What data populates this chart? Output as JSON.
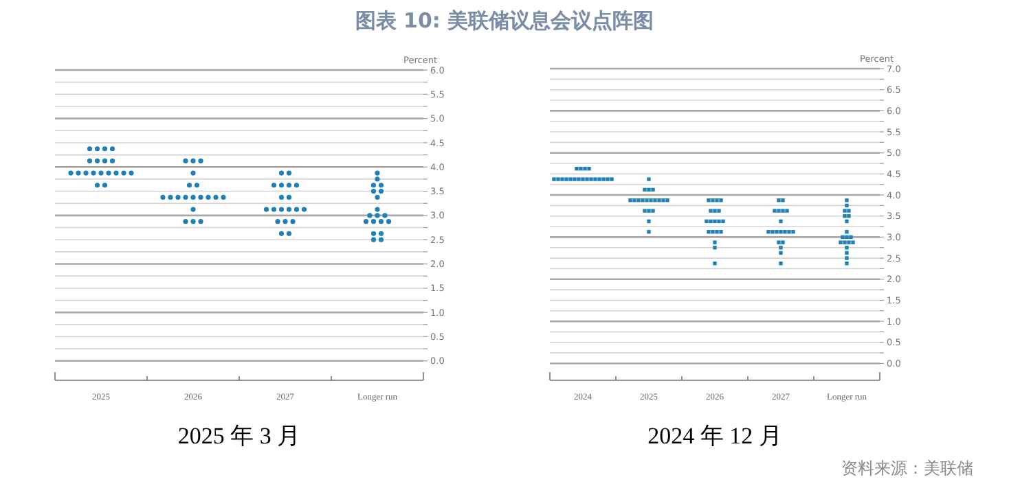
{
  "chart_data": [
    {
      "type": "scatter",
      "title": "2025 年 3 月",
      "ylabel": "Percent",
      "annotations": [
        "图表 10: 美联储议息会议点阵图"
      ],
      "categories": [
        "2025",
        "2026",
        "2027",
        "Longer run"
      ],
      "ylim": [
        -0.4,
        6.0
      ],
      "yticks": [
        {
          "value": 0,
          "label": "0.0"
        },
        {
          "value": 0.25,
          "label": null
        },
        {
          "value": 0.5,
          "label": "0.5"
        },
        {
          "value": 0.75,
          "label": null
        },
        {
          "value": 1,
          "label": "1.0"
        },
        {
          "value": 1.25,
          "label": null
        },
        {
          "value": 1.5,
          "label": "1.5"
        },
        {
          "value": 1.75,
          "label": null
        },
        {
          "value": 2,
          "label": "2.0"
        },
        {
          "value": 2.25,
          "label": null
        },
        {
          "value": 2.5,
          "label": "2.5"
        },
        {
          "value": 2.75,
          "label": null
        },
        {
          "value": 3,
          "label": "3.0"
        },
        {
          "value": 3.25,
          "label": null
        },
        {
          "value": 3.5,
          "label": "3.5"
        },
        {
          "value": 3.75,
          "label": null
        },
        {
          "value": 4,
          "label": "4.0"
        },
        {
          "value": 4.25,
          "label": null
        },
        {
          "value": 4.5,
          "label": "4.5"
        },
        {
          "value": 4.75,
          "label": null
        },
        {
          "value": 5,
          "label": "5.0"
        },
        {
          "value": 5.25,
          "label": null
        },
        {
          "value": 5.5,
          "label": "5.5"
        },
        {
          "value": 5.75,
          "label": null
        },
        {
          "value": 6,
          "label": "6.0"
        }
      ],
      "grid": "y",
      "marker": "circle",
      "series": [
        {
          "color": "#1f7fb8",
          "values": [
            4.375,
            4.125,
            3.875,
            3.875
          ]
        },
        {
          "color": "#1f7fb8",
          "values": [
            4.375,
            4.125,
            3.875,
            3.75
          ]
        },
        {
          "color": "#1f7fb8",
          "values": [
            4.375,
            4.125,
            3.625,
            3.625
          ]
        },
        {
          "color": "#1f7fb8",
          "values": [
            4.375,
            3.875,
            3.625,
            3.625
          ]
        },
        {
          "color": "#1f7fb8",
          "values": [
            4.125,
            3.625,
            3.625,
            3.5
          ]
        },
        {
          "color": "#1f7fb8",
          "values": [
            4.125,
            3.625,
            3.625,
            3.5
          ]
        },
        {
          "color": "#1f7fb8",
          "values": [
            4.125,
            3.375,
            3.375,
            3.375
          ]
        },
        {
          "color": "#1f7fb8",
          "values": [
            4.125,
            3.375,
            3.375,
            3.125
          ]
        },
        {
          "color": "#1f7fb8",
          "values": [
            3.875,
            3.375,
            3.125,
            3.0
          ]
        },
        {
          "color": "#1f7fb8",
          "values": [
            3.875,
            3.375,
            3.125,
            3.0
          ]
        },
        {
          "color": "#1f7fb8",
          "values": [
            3.875,
            3.375,
            3.125,
            3.0
          ]
        },
        {
          "color": "#1f7fb8",
          "values": [
            3.875,
            3.375,
            3.125,
            2.875
          ]
        },
        {
          "color": "#1f7fb8",
          "values": [
            3.875,
            3.375,
            3.125,
            2.875
          ]
        },
        {
          "color": "#1f7fb8",
          "values": [
            3.875,
            3.375,
            3.125,
            2.875
          ]
        },
        {
          "color": "#1f7fb8",
          "values": [
            3.875,
            3.375,
            2.875,
            2.875
          ]
        },
        {
          "color": "#1f7fb8",
          "values": [
            3.875,
            3.125,
            2.875,
            2.625
          ]
        },
        {
          "color": "#1f7fb8",
          "values": [
            3.875,
            2.875,
            2.875,
            2.625
          ]
        },
        {
          "color": "#1f7fb8",
          "values": [
            3.625,
            2.875,
            2.625,
            2.5
          ]
        },
        {
          "color": "#1f7fb8",
          "values": [
            3.625,
            2.875,
            2.625,
            2.5
          ]
        }
      ]
    },
    {
      "type": "scatter",
      "title": "2024 年 12 月",
      "ylabel": "Percent",
      "annotations": [
        "资料来源：美联储"
      ],
      "categories": [
        "2024",
        "2025",
        "2026",
        "2027",
        "Longer run"
      ],
      "ylim": [
        -0.4,
        7.0
      ],
      "yticks": [
        {
          "value": 0,
          "label": "0.0"
        },
        {
          "value": 0.25,
          "label": null
        },
        {
          "value": 0.5,
          "label": "0.5"
        },
        {
          "value": 0.75,
          "label": null
        },
        {
          "value": 1,
          "label": "1.0"
        },
        {
          "value": 1.25,
          "label": null
        },
        {
          "value": 1.5,
          "label": "1.5"
        },
        {
          "value": 1.75,
          "label": null
        },
        {
          "value": 2,
          "label": "2.0"
        },
        {
          "value": 2.25,
          "label": null
        },
        {
          "value": 2.5,
          "label": "2.5"
        },
        {
          "value": 2.75,
          "label": null
        },
        {
          "value": 3,
          "label": "3.0"
        },
        {
          "value": 3.25,
          "label": null
        },
        {
          "value": 3.5,
          "label": "3.5"
        },
        {
          "value": 3.75,
          "label": null
        },
        {
          "value": 4,
          "label": "4.0"
        },
        {
          "value": 4.25,
          "label": null
        },
        {
          "value": 4.5,
          "label": "4.5"
        },
        {
          "value": 4.75,
          "label": null
        },
        {
          "value": 5,
          "label": "5.0"
        },
        {
          "value": 5.25,
          "label": null
        },
        {
          "value": 5.5,
          "label": "5.5"
        },
        {
          "value": 5.75,
          "label": null
        },
        {
          "value": 6,
          "label": "6.0"
        },
        {
          "value": 6.25,
          "label": null
        },
        {
          "value": 6.5,
          "label": "6.5"
        },
        {
          "value": 6.75,
          "label": null
        },
        {
          "value": 7,
          "label": "7.0"
        }
      ],
      "grid": "y",
      "marker": "square",
      "series": [
        {
          "color": "#1f7fb8",
          "values": [
            4.625,
            4.375,
            3.875,
            3.875,
            3.875
          ]
        },
        {
          "color": "#1f7fb8",
          "values": [
            4.625,
            4.125,
            3.875,
            3.875,
            3.75
          ]
        },
        {
          "color": "#1f7fb8",
          "values": [
            4.625,
            4.125,
            3.875,
            3.625,
            3.625
          ]
        },
        {
          "color": "#1f7fb8",
          "values": [
            4.625,
            4.125,
            3.875,
            3.625,
            3.625
          ]
        },
        {
          "color": "#1f7fb8",
          "values": [
            4.375,
            3.875,
            3.625,
            3.625,
            3.5
          ]
        },
        {
          "color": "#1f7fb8",
          "values": [
            4.375,
            3.875,
            3.625,
            3.625,
            3.5
          ]
        },
        {
          "color": "#1f7fb8",
          "values": [
            4.375,
            3.875,
            3.625,
            3.375,
            3.375
          ]
        },
        {
          "color": "#1f7fb8",
          "values": [
            4.375,
            3.875,
            3.375,
            3.125,
            3.125
          ]
        },
        {
          "color": "#1f7fb8",
          "values": [
            4.375,
            3.875,
            3.375,
            3.125,
            3.0
          ]
        },
        {
          "color": "#1f7fb8",
          "values": [
            4.375,
            3.875,
            3.375,
            3.125,
            3.0
          ]
        },
        {
          "color": "#1f7fb8",
          "values": [
            4.375,
            3.875,
            3.375,
            3.125,
            3.0
          ]
        },
        {
          "color": "#1f7fb8",
          "values": [
            4.375,
            3.875,
            3.375,
            3.125,
            2.875
          ]
        },
        {
          "color": "#1f7fb8",
          "values": [
            4.375,
            3.875,
            3.125,
            3.125,
            2.875
          ]
        },
        {
          "color": "#1f7fb8",
          "values": [
            4.375,
            3.875,
            3.125,
            3.125,
            2.875
          ]
        },
        {
          "color": "#1f7fb8",
          "values": [
            4.375,
            3.625,
            3.125,
            2.875,
            2.875
          ]
        },
        {
          "color": "#1f7fb8",
          "values": [
            4.375,
            3.625,
            3.125,
            2.875,
            2.75
          ]
        },
        {
          "color": "#1f7fb8",
          "values": [
            4.375,
            3.625,
            2.875,
            2.75,
            2.625
          ]
        },
        {
          "color": "#1f7fb8",
          "values": [
            4.375,
            3.375,
            2.75,
            2.625,
            2.5
          ]
        },
        {
          "color": "#1f7fb8",
          "values": [
            4.375,
            3.125,
            2.375,
            2.375,
            2.375
          ]
        }
      ]
    }
  ]
}
